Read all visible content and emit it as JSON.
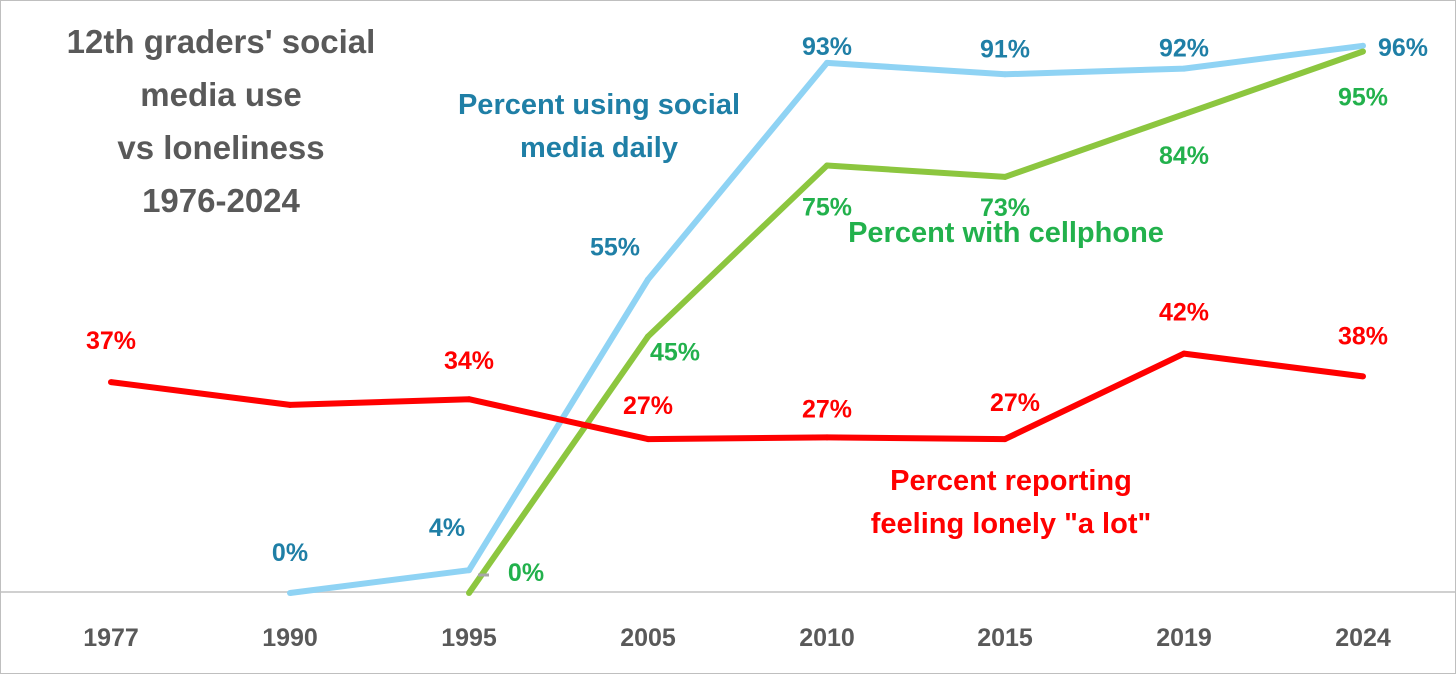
{
  "chart_data": {
    "type": "line",
    "title_lines": [
      "12th graders' social",
      "media use",
      "vs loneliness",
      "1976-2024"
    ],
    "categories": [
      "1977",
      "1990",
      "1995",
      "2005",
      "2010",
      "2015",
      "2019",
      "2024"
    ],
    "ylim": [
      0,
      100
    ],
    "grid": false,
    "legend": "inline labels",
    "series": [
      {
        "key": "social",
        "name_lines": [
          "Percent using social",
          "media daily"
        ],
        "color": "#8fd3f4",
        "label_color": "#1f7fa6",
        "values": [
          null,
          0,
          4,
          55,
          93,
          91,
          92,
          96
        ],
        "labels": [
          null,
          "0%",
          "4%",
          "55%",
          "93%",
          "91%",
          "92%",
          "96%"
        ]
      },
      {
        "key": "cellphone",
        "name_lines": [
          "Percent with cellphone"
        ],
        "color": "#8cc63f",
        "label_color": "#22b14c",
        "values": [
          null,
          null,
          0,
          45,
          75,
          73,
          84,
          95
        ],
        "labels": [
          null,
          null,
          "0%",
          "45%",
          "75%",
          "73%",
          "84%",
          "95%"
        ]
      },
      {
        "key": "lonely",
        "name_lines": [
          "Percent reporting",
          "feeling lonely \"a lot\""
        ],
        "color": "#ff0000",
        "label_color": "#ff0000",
        "values": [
          37,
          33,
          34,
          27,
          27.3,
          27,
          42,
          38
        ],
        "labels": [
          "37%",
          null,
          "34%",
          "27%",
          "27%",
          "27%",
          "42%",
          "38%"
        ]
      }
    ]
  }
}
